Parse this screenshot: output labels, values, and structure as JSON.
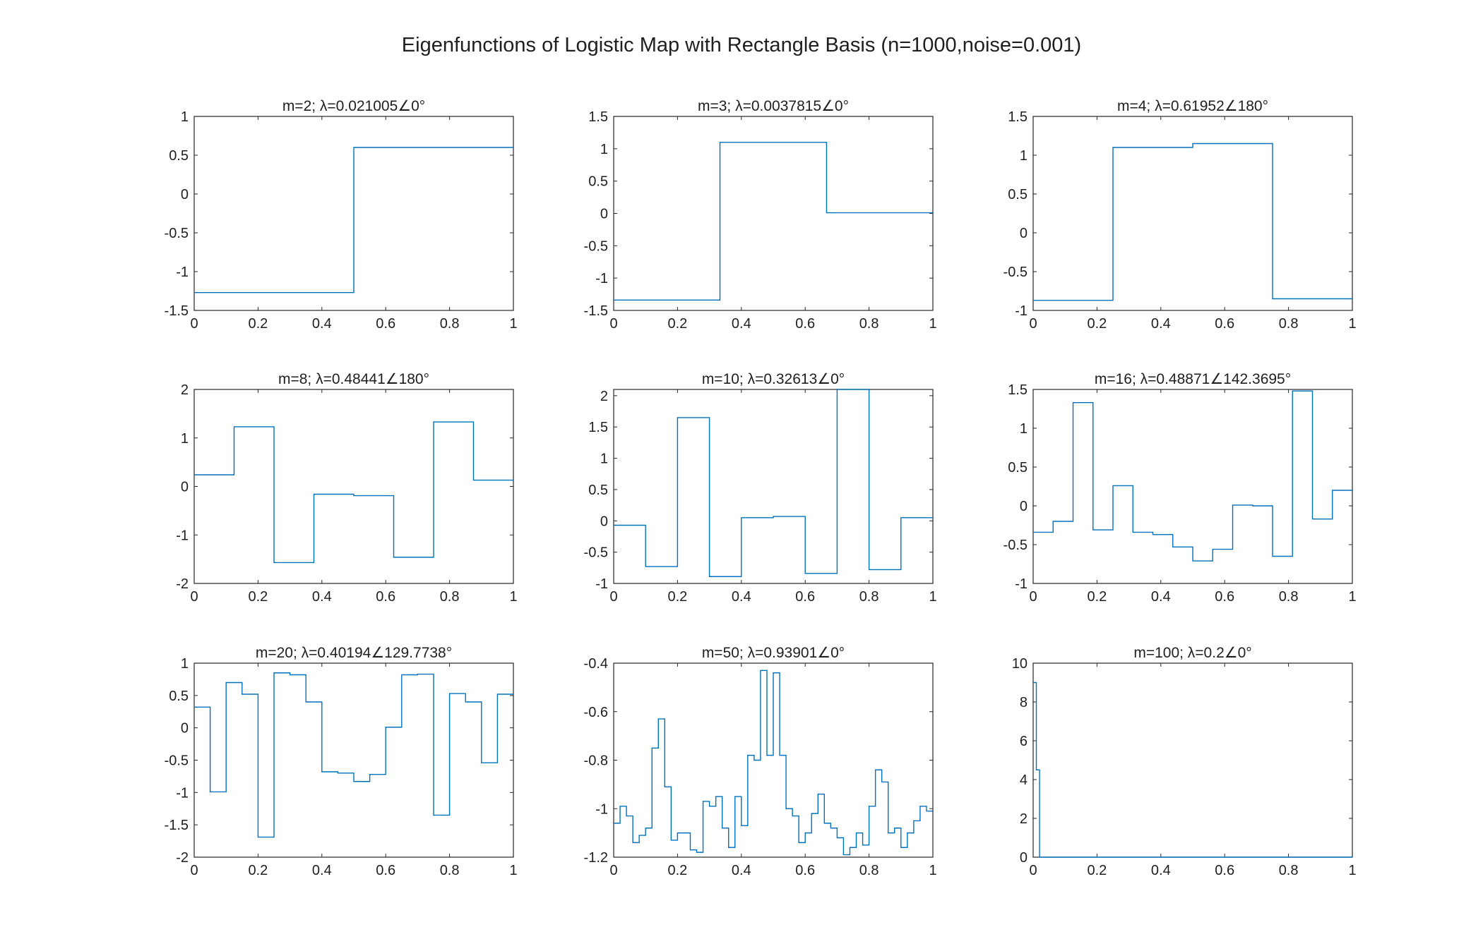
{
  "figure": {
    "title": "Eigenfunctions of Logistic Map with Rectangle Basis (n=1000,noise=0.001)",
    "line_color": "#0072BD",
    "axis_color": "#262626"
  },
  "chart_data": [
    {
      "type": "line",
      "title": "m=2; λ=0.021005∠0°",
      "xlim": [
        0,
        1
      ],
      "ylim": [
        -1.5,
        1
      ],
      "xticks": [
        0,
        0.2,
        0.4,
        0.6,
        0.8,
        1
      ],
      "xtick_labels": [
        "0",
        "0.2",
        "0.4",
        "0.6",
        "0.8",
        "1"
      ],
      "yticks": [
        -1.5,
        -1,
        -0.5,
        0,
        0.5,
        1
      ],
      "ytick_labels": [
        "-1.5",
        "-1",
        "-0.5",
        "0",
        "0.5",
        "1"
      ],
      "x": [
        0,
        0.5,
        0.5,
        1
      ],
      "y": [
        -1.27,
        -1.27,
        0.6,
        0.6
      ]
    },
    {
      "type": "line",
      "title": "m=3; λ=0.0037815∠0°",
      "xlim": [
        0,
        1
      ],
      "ylim": [
        -1.5,
        1.5
      ],
      "xticks": [
        0,
        0.2,
        0.4,
        0.6,
        0.8,
        1
      ],
      "xtick_labels": [
        "0",
        "0.2",
        "0.4",
        "0.6",
        "0.8",
        "1"
      ],
      "yticks": [
        -1.5,
        -1,
        -0.5,
        0,
        0.5,
        1,
        1.5
      ],
      "ytick_labels": [
        "-1.5",
        "-1",
        "-0.5",
        "0",
        "0.5",
        "1",
        "1.5"
      ],
      "x": [
        0,
        0.333,
        0.333,
        0.667,
        0.667,
        1
      ],
      "y": [
        -1.34,
        -1.34,
        1.1,
        1.1,
        0.01,
        0.01
      ]
    },
    {
      "type": "line",
      "title": "m=4; λ=0.61952∠180°",
      "xlim": [
        0,
        1
      ],
      "ylim": [
        -1,
        1.5
      ],
      "xticks": [
        0,
        0.2,
        0.4,
        0.6,
        0.8,
        1
      ],
      "xtick_labels": [
        "0",
        "0.2",
        "0.4",
        "0.6",
        "0.8",
        "1"
      ],
      "yticks": [
        -1,
        -0.5,
        0,
        0.5,
        1,
        1.5
      ],
      "ytick_labels": [
        "-1",
        "-0.5",
        "0",
        "0.5",
        "1",
        "1.5"
      ],
      "x": [
        0,
        0.25,
        0.25,
        0.5,
        0.5,
        0.75,
        0.75,
        1
      ],
      "y": [
        -0.87,
        -0.87,
        1.1,
        1.1,
        1.15,
        1.15,
        -0.85,
        -0.85
      ]
    },
    {
      "type": "line",
      "title": "m=8; λ=0.48441∠180°",
      "xlim": [
        0,
        1
      ],
      "ylim": [
        -2,
        2
      ],
      "xticks": [
        0,
        0.2,
        0.4,
        0.6,
        0.8,
        1
      ],
      "xtick_labels": [
        "0",
        "0.2",
        "0.4",
        "0.6",
        "0.8",
        "1"
      ],
      "yticks": [
        -2,
        -1,
        0,
        1,
        2
      ],
      "ytick_labels": [
        "-2",
        "-1",
        "0",
        "1",
        "2"
      ],
      "x": [
        0,
        0.125,
        0.125,
        0.25,
        0.25,
        0.375,
        0.375,
        0.5,
        0.5,
        0.625,
        0.625,
        0.75,
        0.75,
        0.875,
        0.875,
        1
      ],
      "y": [
        0.24,
        0.24,
        1.23,
        1.23,
        -1.57,
        -1.57,
        -0.16,
        -0.16,
        -0.19,
        -0.19,
        -1.46,
        -1.46,
        1.33,
        1.33,
        0.13,
        0.13
      ]
    },
    {
      "type": "line",
      "title": "m=10; λ=0.32613∠0°",
      "xlim": [
        0,
        1
      ],
      "ylim": [
        -1,
        2.1
      ],
      "xticks": [
        0,
        0.2,
        0.4,
        0.6,
        0.8,
        1
      ],
      "xtick_labels": [
        "0",
        "0.2",
        "0.4",
        "0.6",
        "0.8",
        "1"
      ],
      "yticks": [
        -1,
        -0.5,
        0,
        0.5,
        1,
        1.5,
        2
      ],
      "ytick_labels": [
        "-1",
        "-0.5",
        "0",
        "0.5",
        "1",
        "1.5",
        "2"
      ],
      "x": [
        0,
        0.1,
        0.1,
        0.2,
        0.2,
        0.3,
        0.3,
        0.4,
        0.4,
        0.5,
        0.5,
        0.6,
        0.6,
        0.7,
        0.7,
        0.8,
        0.8,
        0.9,
        0.9,
        1
      ],
      "y": [
        -0.07,
        -0.07,
        -0.73,
        -0.73,
        1.65,
        1.65,
        -0.89,
        -0.89,
        0.05,
        0.05,
        0.07,
        0.07,
        -0.84,
        -0.84,
        2.1,
        2.1,
        -0.78,
        -0.78,
        0.05,
        0.05
      ]
    },
    {
      "type": "line",
      "title": "m=16; λ=0.48871∠142.3695°",
      "xlim": [
        0,
        1
      ],
      "ylim": [
        -1,
        1.5
      ],
      "xticks": [
        0,
        0.2,
        0.4,
        0.6,
        0.8,
        1
      ],
      "xtick_labels": [
        "0",
        "0.2",
        "0.4",
        "0.6",
        "0.8",
        "1"
      ],
      "yticks": [
        -1,
        -0.5,
        0,
        0.5,
        1,
        1.5
      ],
      "ytick_labels": [
        "-1",
        "-0.5",
        "0",
        "0.5",
        "1",
        "1.5"
      ],
      "x": [
        0,
        0.0625,
        0.0625,
        0.125,
        0.125,
        0.1875,
        0.1875,
        0.25,
        0.25,
        0.3125,
        0.3125,
        0.375,
        0.375,
        0.4375,
        0.4375,
        0.5,
        0.5,
        0.5625,
        0.5625,
        0.625,
        0.625,
        0.6875,
        0.6875,
        0.75,
        0.75,
        0.8125,
        0.8125,
        0.875,
        0.875,
        0.9375,
        0.9375,
        1
      ],
      "y": [
        -0.34,
        -0.34,
        -0.2,
        -0.2,
        1.33,
        1.33,
        -0.31,
        -0.31,
        0.26,
        0.26,
        -0.34,
        -0.34,
        -0.37,
        -0.37,
        -0.53,
        -0.53,
        -0.71,
        -0.71,
        -0.56,
        -0.56,
        0.01,
        0.01,
        0.0,
        0.0,
        -0.65,
        -0.65,
        1.48,
        1.48,
        -0.17,
        -0.17,
        0.2,
        0.2
      ]
    },
    {
      "type": "line",
      "title": "m=20; λ=0.40194∠129.7738°",
      "xlim": [
        0,
        1
      ],
      "ylim": [
        -2,
        1
      ],
      "xticks": [
        0,
        0.2,
        0.4,
        0.6,
        0.8,
        1
      ],
      "xtick_labels": [
        "0",
        "0.2",
        "0.4",
        "0.6",
        "0.8",
        "1"
      ],
      "yticks": [
        -2,
        -1.5,
        -1,
        -0.5,
        0,
        0.5,
        1
      ],
      "ytick_labels": [
        "-2",
        "-1.5",
        "-1",
        "-0.5",
        "0",
        "0.5",
        "1"
      ],
      "x": [
        0,
        0.05,
        0.05,
        0.1,
        0.1,
        0.15,
        0.15,
        0.2,
        0.2,
        0.25,
        0.25,
        0.3,
        0.3,
        0.35,
        0.35,
        0.4,
        0.4,
        0.45,
        0.45,
        0.5,
        0.5,
        0.55,
        0.55,
        0.6,
        0.6,
        0.65,
        0.65,
        0.7,
        0.7,
        0.75,
        0.75,
        0.8,
        0.8,
        0.85,
        0.85,
        0.9,
        0.9,
        0.95,
        0.95,
        1
      ],
      "y": [
        0.32,
        0.32,
        -0.99,
        -0.99,
        0.7,
        0.7,
        0.52,
        0.52,
        -1.69,
        -1.69,
        0.85,
        0.85,
        0.82,
        0.82,
        0.4,
        0.4,
        -0.68,
        -0.68,
        -0.7,
        -0.7,
        -0.83,
        -0.83,
        -0.72,
        -0.72,
        0.01,
        0.01,
        0.82,
        0.82,
        0.83,
        0.83,
        -1.35,
        -1.35,
        0.53,
        0.53,
        0.4,
        0.4,
        -0.54,
        -0.54,
        0.52,
        0.52
      ]
    },
    {
      "type": "line",
      "title": "m=50; λ=0.93901∠0°",
      "xlim": [
        0,
        1
      ],
      "ylim": [
        -1.2,
        -0.4
      ],
      "xticks": [
        0,
        0.2,
        0.4,
        0.6,
        0.8,
        1
      ],
      "xtick_labels": [
        "0",
        "0.2",
        "0.4",
        "0.6",
        "0.8",
        "1"
      ],
      "yticks": [
        -1.2,
        -1,
        -0.8,
        -0.6,
        -0.4
      ],
      "ytick_labels": [
        "-1.2",
        "-1",
        "-0.8",
        "-0.6",
        "-0.4"
      ],
      "x": [
        0,
        0.02,
        0.02,
        0.04,
        0.04,
        0.06,
        0.06,
        0.08,
        0.08,
        0.1,
        0.1,
        0.12,
        0.12,
        0.14,
        0.14,
        0.16,
        0.16,
        0.18,
        0.18,
        0.2,
        0.2,
        0.22,
        0.22,
        0.24,
        0.24,
        0.26,
        0.26,
        0.28,
        0.28,
        0.3,
        0.3,
        0.32,
        0.32,
        0.34,
        0.34,
        0.36,
        0.36,
        0.38,
        0.38,
        0.4,
        0.4,
        0.42,
        0.42,
        0.44,
        0.44,
        0.46,
        0.46,
        0.48,
        0.48,
        0.5,
        0.5,
        0.52,
        0.52,
        0.54,
        0.54,
        0.56,
        0.56,
        0.58,
        0.58,
        0.6,
        0.6,
        0.62,
        0.62,
        0.64,
        0.64,
        0.66,
        0.66,
        0.68,
        0.68,
        0.7,
        0.7,
        0.72,
        0.72,
        0.74,
        0.74,
        0.76,
        0.76,
        0.78,
        0.78,
        0.8,
        0.8,
        0.82,
        0.82,
        0.84,
        0.84,
        0.86,
        0.86,
        0.88,
        0.88,
        0.9,
        0.9,
        0.92,
        0.92,
        0.94,
        0.94,
        0.96,
        0.96,
        0.98,
        0.98,
        1
      ],
      "y": [
        -1.06,
        -1.06,
        -0.99,
        -0.99,
        -1.03,
        -1.03,
        -1.14,
        -1.14,
        -1.11,
        -1.11,
        -1.08,
        -1.08,
        -0.75,
        -0.75,
        -0.63,
        -0.63,
        -0.91,
        -0.91,
        -1.13,
        -1.13,
        -1.1,
        -1.1,
        -1.1,
        -1.1,
        -1.17,
        -1.17,
        -1.18,
        -1.18,
        -0.97,
        -0.97,
        -0.99,
        -0.99,
        -0.95,
        -0.95,
        -1.08,
        -1.08,
        -1.16,
        -1.16,
        -0.95,
        -0.95,
        -1.07,
        -1.07,
        -0.78,
        -0.78,
        -0.8,
        -0.8,
        -0.43,
        -0.43,
        -0.78,
        -0.78,
        -0.44,
        -0.44,
        -0.78,
        -0.78,
        -1.0,
        -1.0,
        -1.03,
        -1.03,
        -1.14,
        -1.14,
        -1.1,
        -1.1,
        -1.02,
        -1.02,
        -0.94,
        -0.94,
        -1.06,
        -1.06,
        -1.08,
        -1.08,
        -1.12,
        -1.12,
        -1.19,
        -1.19,
        -1.16,
        -1.16,
        -1.1,
        -1.1,
        -1.15,
        -1.15,
        -0.99,
        -0.99,
        -0.84,
        -0.84,
        -0.89,
        -0.89,
        -1.1,
        -1.1,
        -1.08,
        -1.08,
        -1.16,
        -1.16,
        -1.1,
        -1.1,
        -1.05,
        -1.05,
        -0.99,
        -0.99,
        -1.01,
        -1.01
      ]
    },
    {
      "type": "line",
      "title": "m=100; λ=0.2∠0°",
      "xlim": [
        0,
        1
      ],
      "ylim": [
        0,
        10
      ],
      "xticks": [
        0,
        0.2,
        0.4,
        0.6,
        0.8,
        1
      ],
      "xtick_labels": [
        "0",
        "0.2",
        "0.4",
        "0.6",
        "0.8",
        "1"
      ],
      "yticks": [
        0,
        2,
        4,
        6,
        8,
        10
      ],
      "ytick_labels": [
        "0",
        "2",
        "4",
        "6",
        "8",
        "10"
      ],
      "x": [
        0,
        0.01,
        0.01,
        0.02,
        0.02,
        1
      ],
      "y": [
        9.0,
        9.0,
        4.5,
        4.5,
        0,
        0
      ]
    }
  ]
}
